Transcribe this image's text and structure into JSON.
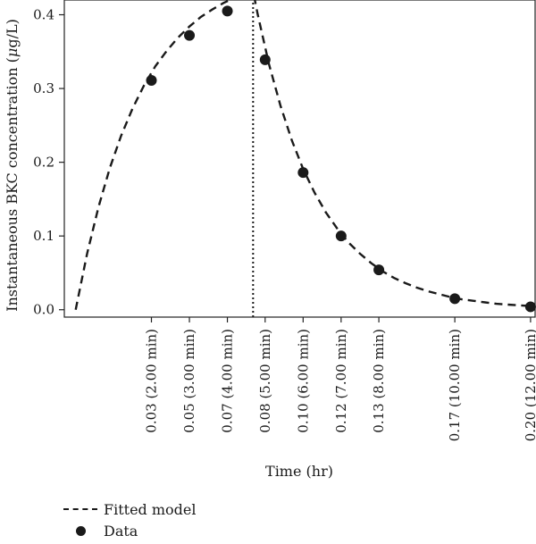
{
  "chart_data": {
    "type": "line",
    "xlabel": "Time (hr)",
    "ylabel_prefix": "Instantaneous BKC concentration (",
    "ylabel_mu": "μ",
    "ylabel_suffix": "g/L)",
    "ylim": [
      -0.01,
      0.42
    ],
    "xlim": [
      -0.005,
      0.202
    ],
    "yticks": [
      0.0,
      0.1,
      0.2,
      0.3,
      0.4
    ],
    "ytick_labels": [
      "0.0",
      "0.1",
      "0.2",
      "0.3",
      "0.4"
    ],
    "xticks": [
      0.0333,
      0.05,
      0.0667,
      0.0833,
      0.1,
      0.1167,
      0.1333,
      0.1667,
      0.2
    ],
    "xtick_labels": [
      "0.03 (2.00 min)",
      "0.05 (3.00 min)",
      "0.07 (4.00 min)",
      "0.08 (5.00 min)",
      "0.10 (6.00 min)",
      "0.12 (7.00 min)",
      "0.13 (8.00 min)",
      "0.17 (10.00 min)",
      "0.20 (12.00 min)"
    ],
    "vertical_line_x": 0.078,
    "series": [
      {
        "name": "Fitted model",
        "style": "dashed",
        "x": [
          0.0,
          0.005,
          0.01,
          0.015,
          0.02,
          0.025,
          0.03,
          0.035,
          0.04,
          0.045,
          0.05,
          0.055,
          0.06,
          0.065,
          0.07,
          0.075,
          0.078,
          0.08,
          0.085,
          0.09,
          0.095,
          0.1,
          0.105,
          0.11,
          0.115,
          0.12,
          0.125,
          0.13,
          0.135,
          0.14,
          0.145,
          0.15,
          0.155,
          0.16,
          0.165,
          0.17,
          0.175,
          0.18,
          0.185,
          0.19,
          0.195,
          0.2
        ],
        "y": [
          0.0,
          0.076,
          0.139,
          0.192,
          0.236,
          0.273,
          0.304,
          0.33,
          0.351,
          0.369,
          0.384,
          0.397,
          0.407,
          0.416,
          0.423,
          0.429,
          0.432,
          0.401,
          0.333,
          0.277,
          0.23,
          0.191,
          0.159,
          0.132,
          0.11,
          0.091,
          0.076,
          0.063,
          0.052,
          0.043,
          0.036,
          0.03,
          0.025,
          0.021,
          0.017,
          0.014,
          0.012,
          0.01,
          0.008,
          0.007,
          0.006,
          0.005
        ]
      },
      {
        "name": "Data",
        "style": "points",
        "x": [
          0.0333,
          0.05,
          0.0667,
          0.0833,
          0.1,
          0.1167,
          0.1333,
          0.1667,
          0.2
        ],
        "y": [
          0.311,
          0.372,
          0.405,
          0.339,
          0.186,
          0.1,
          0.054,
          0.015,
          0.004
        ]
      }
    ]
  },
  "legend": {
    "fitted_label": "Fitted model",
    "data_label": "Data"
  }
}
